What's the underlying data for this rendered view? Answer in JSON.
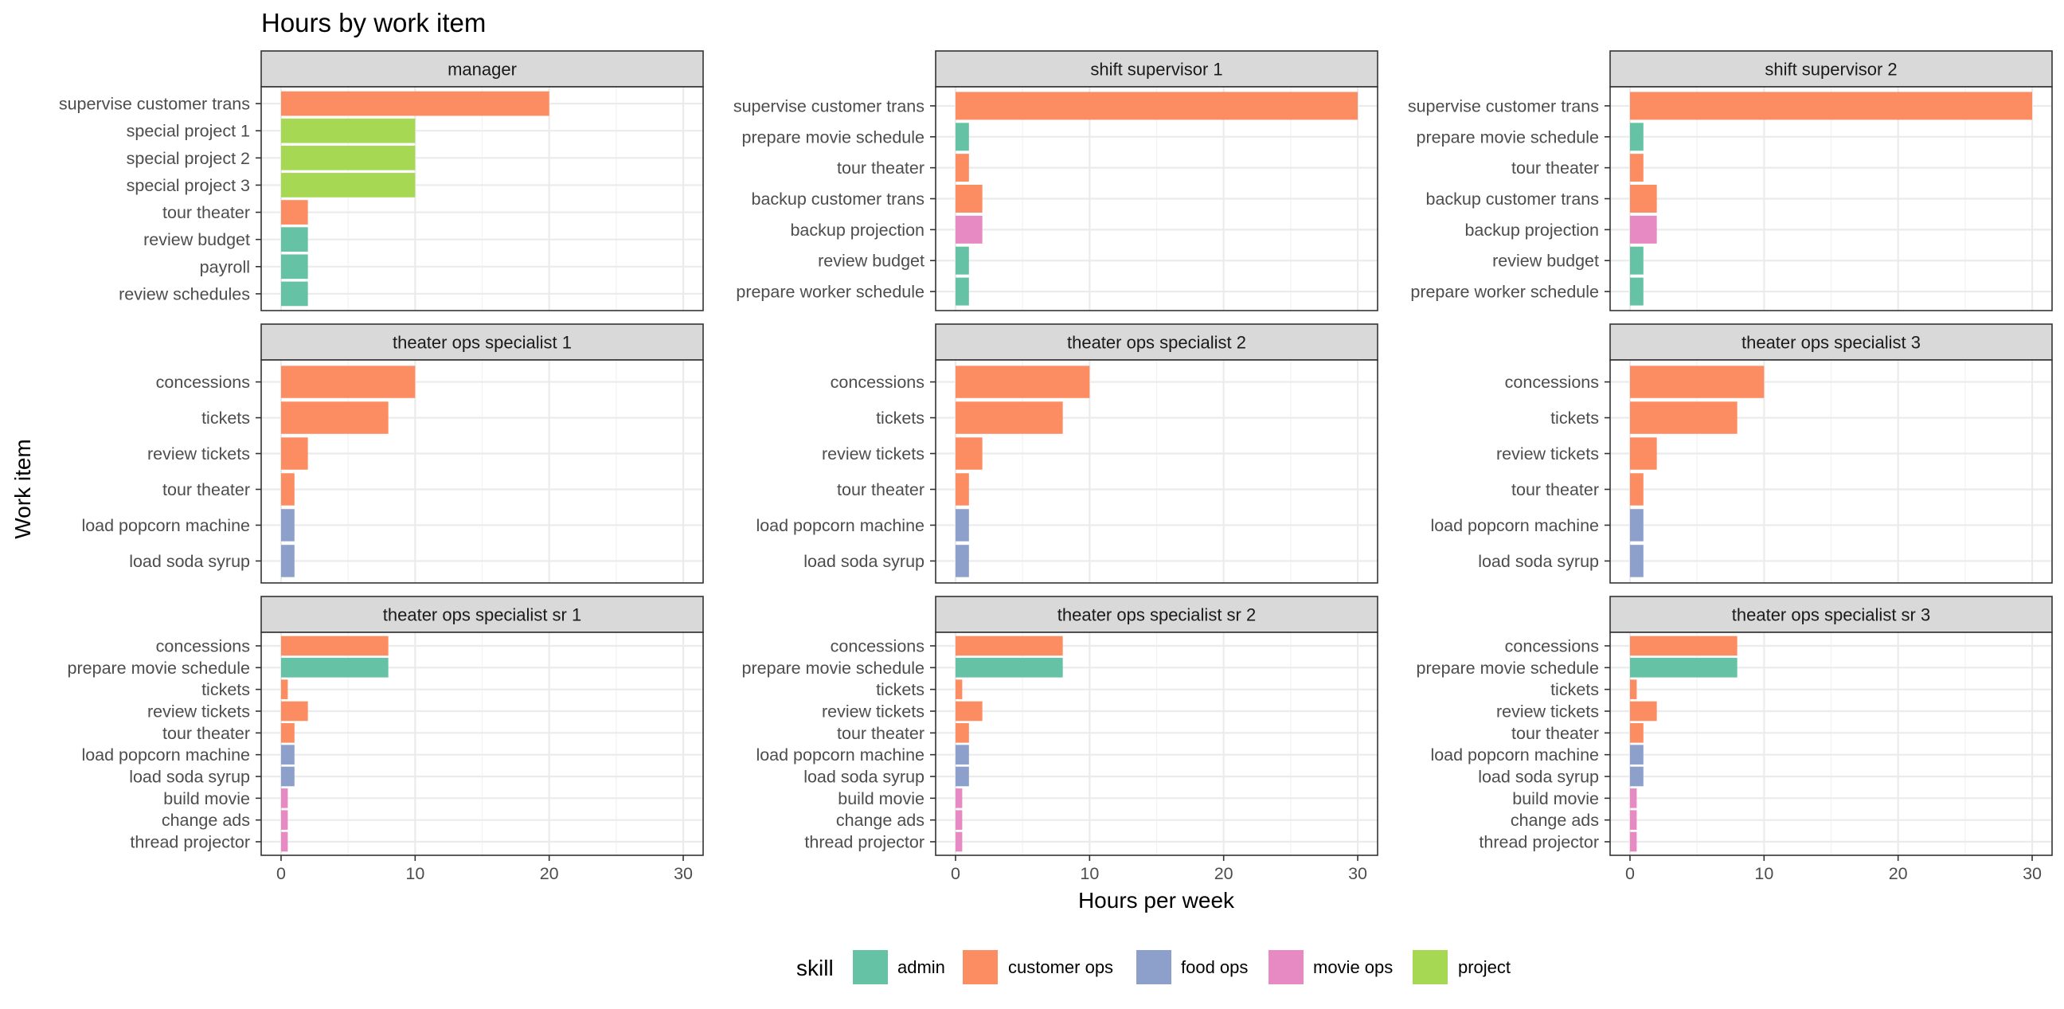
{
  "chart_data": {
    "type": "bar",
    "orientation": "horizontal",
    "title": "Hours by work item",
    "xlabel": "Hours per week",
    "ylabel": "Work item",
    "xlim": [
      0,
      30
    ],
    "x_ticks": [
      0,
      10,
      20,
      30
    ],
    "grid": true,
    "legend": {
      "title": "skill",
      "position": "bottom",
      "entries": [
        {
          "key": "admin",
          "label": "admin",
          "color": "#66C2A5"
        },
        {
          "key": "customer_ops",
          "label": "customer ops",
          "color": "#FC8D62"
        },
        {
          "key": "food_ops",
          "label": "food ops",
          "color": "#8DA0CB"
        },
        {
          "key": "movie_ops",
          "label": "movie ops",
          "color": "#E78AC3"
        },
        {
          "key": "project",
          "label": "project",
          "color": "#A6D854"
        }
      ]
    },
    "panels": [
      {
        "title": "manager",
        "bars": [
          {
            "item": "supervise customer trans",
            "skill": "customer_ops",
            "hours": 20
          },
          {
            "item": "special project 1",
            "skill": "project",
            "hours": 10
          },
          {
            "item": "special project 2",
            "skill": "project",
            "hours": 10
          },
          {
            "item": "special project 3",
            "skill": "project",
            "hours": 10
          },
          {
            "item": "tour theater",
            "skill": "customer_ops",
            "hours": 2
          },
          {
            "item": "review budget",
            "skill": "admin",
            "hours": 2
          },
          {
            "item": "payroll",
            "skill": "admin",
            "hours": 2
          },
          {
            "item": "review schedules",
            "skill": "admin",
            "hours": 2
          }
        ]
      },
      {
        "title": "shift supervisor 1",
        "bars": [
          {
            "item": "supervise customer trans",
            "skill": "customer_ops",
            "hours": 30
          },
          {
            "item": "prepare movie schedule",
            "skill": "admin",
            "hours": 1
          },
          {
            "item": "tour theater",
            "skill": "customer_ops",
            "hours": 1
          },
          {
            "item": "backup customer trans",
            "skill": "customer_ops",
            "hours": 2
          },
          {
            "item": "backup projection",
            "skill": "movie_ops",
            "hours": 2
          },
          {
            "item": "review budget",
            "skill": "admin",
            "hours": 1
          },
          {
            "item": "prepare worker schedule",
            "skill": "admin",
            "hours": 1
          }
        ]
      },
      {
        "title": "shift supervisor 2",
        "bars": [
          {
            "item": "supervise customer trans",
            "skill": "customer_ops",
            "hours": 30
          },
          {
            "item": "prepare movie schedule",
            "skill": "admin",
            "hours": 1
          },
          {
            "item": "tour theater",
            "skill": "customer_ops",
            "hours": 1
          },
          {
            "item": "backup customer trans",
            "skill": "customer_ops",
            "hours": 2
          },
          {
            "item": "backup projection",
            "skill": "movie_ops",
            "hours": 2
          },
          {
            "item": "review budget",
            "skill": "admin",
            "hours": 1
          },
          {
            "item": "prepare worker schedule",
            "skill": "admin",
            "hours": 1
          }
        ]
      },
      {
        "title": "theater ops specialist 1",
        "bars": [
          {
            "item": "concessions",
            "skill": "customer_ops",
            "hours": 10
          },
          {
            "item": "tickets",
            "skill": "customer_ops",
            "hours": 8
          },
          {
            "item": "review tickets",
            "skill": "customer_ops",
            "hours": 2
          },
          {
            "item": "tour theater",
            "skill": "customer_ops",
            "hours": 1
          },
          {
            "item": "load popcorn machine",
            "skill": "food_ops",
            "hours": 1
          },
          {
            "item": "load soda syrup",
            "skill": "food_ops",
            "hours": 1
          }
        ]
      },
      {
        "title": "theater ops specialist 2",
        "bars": [
          {
            "item": "concessions",
            "skill": "customer_ops",
            "hours": 10
          },
          {
            "item": "tickets",
            "skill": "customer_ops",
            "hours": 8
          },
          {
            "item": "review tickets",
            "skill": "customer_ops",
            "hours": 2
          },
          {
            "item": "tour theater",
            "skill": "customer_ops",
            "hours": 1
          },
          {
            "item": "load popcorn machine",
            "skill": "food_ops",
            "hours": 1
          },
          {
            "item": "load soda syrup",
            "skill": "food_ops",
            "hours": 1
          }
        ]
      },
      {
        "title": "theater ops specialist 3",
        "bars": [
          {
            "item": "concessions",
            "skill": "customer_ops",
            "hours": 10
          },
          {
            "item": "tickets",
            "skill": "customer_ops",
            "hours": 8
          },
          {
            "item": "review tickets",
            "skill": "customer_ops",
            "hours": 2
          },
          {
            "item": "tour theater",
            "skill": "customer_ops",
            "hours": 1
          },
          {
            "item": "load popcorn machine",
            "skill": "food_ops",
            "hours": 1
          },
          {
            "item": "load soda syrup",
            "skill": "food_ops",
            "hours": 1
          }
        ]
      },
      {
        "title": "theater ops specialist sr 1",
        "bars": [
          {
            "item": "concessions",
            "skill": "customer_ops",
            "hours": 8
          },
          {
            "item": "prepare movie schedule",
            "skill": "admin",
            "hours": 8
          },
          {
            "item": "tickets",
            "skill": "customer_ops",
            "hours": 0.5
          },
          {
            "item": "review tickets",
            "skill": "customer_ops",
            "hours": 2
          },
          {
            "item": "tour theater",
            "skill": "customer_ops",
            "hours": 1
          },
          {
            "item": "load popcorn machine",
            "skill": "food_ops",
            "hours": 1
          },
          {
            "item": "load soda syrup",
            "skill": "food_ops",
            "hours": 1
          },
          {
            "item": "build movie",
            "skill": "movie_ops",
            "hours": 0.5
          },
          {
            "item": "change ads",
            "skill": "movie_ops",
            "hours": 0.5
          },
          {
            "item": "thread projector",
            "skill": "movie_ops",
            "hours": 0.5
          }
        ]
      },
      {
        "title": "theater ops specialist sr 2",
        "bars": [
          {
            "item": "concessions",
            "skill": "customer_ops",
            "hours": 8
          },
          {
            "item": "prepare movie schedule",
            "skill": "admin",
            "hours": 8
          },
          {
            "item": "tickets",
            "skill": "customer_ops",
            "hours": 0.5
          },
          {
            "item": "review tickets",
            "skill": "customer_ops",
            "hours": 2
          },
          {
            "item": "tour theater",
            "skill": "customer_ops",
            "hours": 1
          },
          {
            "item": "load popcorn machine",
            "skill": "food_ops",
            "hours": 1
          },
          {
            "item": "load soda syrup",
            "skill": "food_ops",
            "hours": 1
          },
          {
            "item": "build movie",
            "skill": "movie_ops",
            "hours": 0.5
          },
          {
            "item": "change ads",
            "skill": "movie_ops",
            "hours": 0.5
          },
          {
            "item": "thread projector",
            "skill": "movie_ops",
            "hours": 0.5
          }
        ]
      },
      {
        "title": "theater ops specialist sr 3",
        "bars": [
          {
            "item": "concessions",
            "skill": "customer_ops",
            "hours": 8
          },
          {
            "item": "prepare movie schedule",
            "skill": "admin",
            "hours": 8
          },
          {
            "item": "tickets",
            "skill": "customer_ops",
            "hours": 0.5
          },
          {
            "item": "review tickets",
            "skill": "customer_ops",
            "hours": 2
          },
          {
            "item": "tour theater",
            "skill": "customer_ops",
            "hours": 1
          },
          {
            "item": "load popcorn machine",
            "skill": "food_ops",
            "hours": 1
          },
          {
            "item": "load soda syrup",
            "skill": "food_ops",
            "hours": 1
          },
          {
            "item": "build movie",
            "skill": "movie_ops",
            "hours": 0.5
          },
          {
            "item": "change ads",
            "skill": "movie_ops",
            "hours": 0.5
          },
          {
            "item": "thread projector",
            "skill": "movie_ops",
            "hours": 0.5
          }
        ]
      }
    ]
  }
}
